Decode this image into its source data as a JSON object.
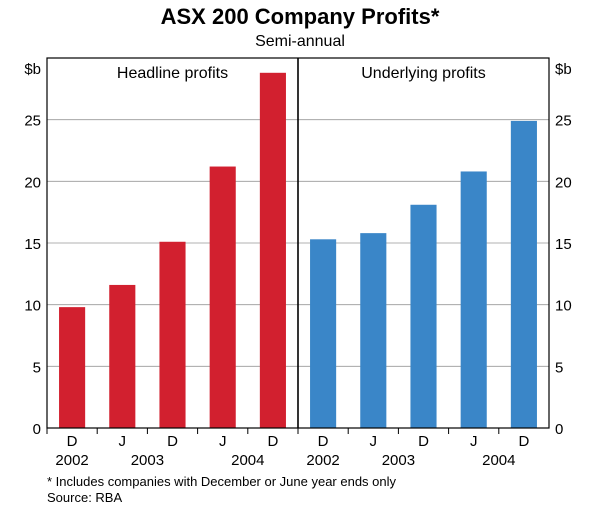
{
  "chart_data": {
    "type": "bar",
    "title": "ASX 200 Company Profits*",
    "subtitle": "Semi-annual",
    "ylabel_left": "$b",
    "ylabel_right": "$b",
    "ylim": [
      0,
      30
    ],
    "yticks": [
      0,
      5,
      10,
      15,
      20,
      25
    ],
    "period_labels": [
      "D",
      "J",
      "D",
      "J",
      "D"
    ],
    "year_labels": [
      {
        "label": "2002",
        "at": 0
      },
      {
        "label": "2003",
        "at": 1.5
      },
      {
        "label": "2004",
        "at": 3.5
      }
    ],
    "panels": [
      {
        "name": "Headline profits",
        "color": "#d2202f",
        "values": [
          9.8,
          11.6,
          15.1,
          21.2,
          28.8
        ]
      },
      {
        "name": "Underlying profits",
        "color": "#3a86c8",
        "values": [
          15.3,
          15.8,
          18.1,
          20.8,
          24.9
        ]
      }
    ]
  },
  "footnotes": {
    "note": "*   Includes companies with December or June year ends only",
    "source": "Source: RBA"
  }
}
